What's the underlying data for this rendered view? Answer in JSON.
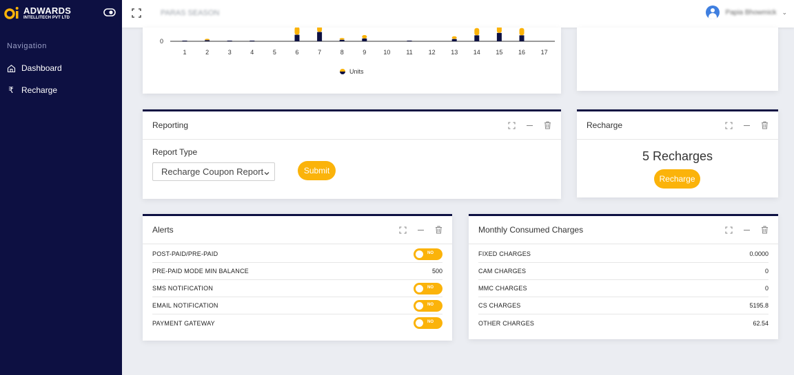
{
  "brand": {
    "name": "ADWARDS",
    "sub": "INTELLITECH PVT LTD"
  },
  "sidebar": {
    "nav_title": "Navigation",
    "items": [
      {
        "label": "Dashboard",
        "icon": "home-icon"
      },
      {
        "label": "Recharge",
        "icon": "rupee-icon"
      }
    ]
  },
  "header": {
    "season": "PARAS SEASON",
    "user_name": "Papia Bhowmick"
  },
  "colors": {
    "sidebar": "#0d1042",
    "accent": "#fbb30a",
    "bar_dark": "#0d1042"
  },
  "chart_data": {
    "type": "bar",
    "categories": [
      "1",
      "2",
      "3",
      "4",
      "5",
      "6",
      "7",
      "8",
      "9",
      "10",
      "11",
      "12",
      "13",
      "14",
      "15",
      "16",
      "17"
    ],
    "series": [
      {
        "name": "Units",
        "values": [
          0.1,
          0.6,
          0.1,
          0.2,
          0,
          3.5,
          5,
          0.8,
          1.5,
          0,
          0.1,
          0,
          1.2,
          3.2,
          4.5,
          3.2,
          0
        ]
      }
    ],
    "ylim": [
      0,
      5
    ],
    "y_ticks": [
      "0"
    ],
    "legend": "Units"
  },
  "reporting": {
    "title": "Reporting",
    "report_type_label": "Report Type",
    "report_type_value": "Recharge Coupon Report",
    "submit_label": "Submit"
  },
  "recharge": {
    "title": "Recharge",
    "count_text": "5 Recharges",
    "button_label": "Recharge"
  },
  "alerts": {
    "title": "Alerts",
    "rows": [
      {
        "label": "POST-PAID/PRE-PAID",
        "toggle": "NO"
      },
      {
        "label": "PRE-PAID MODE MIN BALANCE",
        "value": "500"
      },
      {
        "label": "SMS NOTIFICATION",
        "toggle": "NO"
      },
      {
        "label": "EMAIL NOTIFICATION",
        "toggle": "NO"
      },
      {
        "label": "PAYMENT GATEWAY",
        "toggle": "NO"
      }
    ]
  },
  "charges": {
    "title": "Monthly Consumed Charges",
    "rows": [
      {
        "label": "FIXED CHARGES",
        "value": "0.0000"
      },
      {
        "label": "CAM CHARGES",
        "value": "0"
      },
      {
        "label": "MMC CHARGES",
        "value": "0"
      },
      {
        "label": "CS CHARGES",
        "value": "5195.8"
      },
      {
        "label": "OTHER CHARGES",
        "value": "62.54"
      }
    ]
  }
}
